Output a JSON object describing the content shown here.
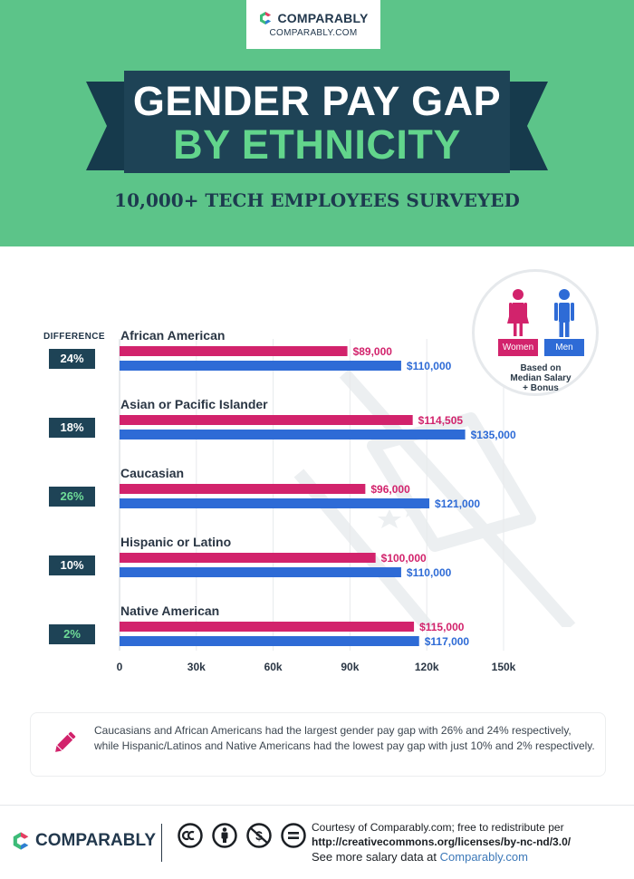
{
  "header": {
    "logo_name": "COMPARABLY",
    "logo_url": "COMPARABLY.COM",
    "title_line1": "GENDER PAY GAP",
    "title_line2": "BY ETHNICITY",
    "subtitle": "10,000+ TECH EMPLOYEES SURVEYED"
  },
  "colors": {
    "header_green": "#5cc489",
    "banner_navy": "#1e4356",
    "women": "#d2236c",
    "men": "#2e6bd6",
    "highlight_green": "#6fdc98"
  },
  "legend": {
    "women": "Women",
    "men": "Men",
    "note_line1": "Based on",
    "note_line2": "Median Salary",
    "note_line3": "+ Bonus",
    "icons": [
      "woman-figure-icon",
      "man-figure-icon"
    ]
  },
  "difference_header": "DIFFERENCE",
  "chart_data": {
    "type": "bar",
    "orientation": "horizontal",
    "categories": [
      "African American",
      "Asian or Pacific Islander",
      "Caucasian",
      "Hispanic or Latino",
      "Native American"
    ],
    "differences": [
      "24%",
      "18%",
      "26%",
      "10%",
      "2%"
    ],
    "highlighted_differences": [
      false,
      false,
      true,
      false,
      true
    ],
    "series": [
      {
        "name": "Women",
        "values": [
          89000,
          114505,
          96000,
          100000,
          115000
        ],
        "labels": [
          "$89,000",
          "$114,505",
          "$96,000",
          "$100,000",
          "$115,000"
        ]
      },
      {
        "name": "Men",
        "values": [
          110000,
          135000,
          121000,
          110000,
          117000
        ],
        "labels": [
          "$110,000",
          "$135,000",
          "$121,000",
          "$110,000",
          "$117,000"
        ]
      }
    ],
    "x_ticks": [
      0,
      30000,
      60000,
      90000,
      120000,
      150000
    ],
    "x_tick_labels": [
      "0",
      "30k",
      "60k",
      "90k",
      "120k",
      "150k"
    ],
    "xlim": [
      0,
      150000
    ],
    "grid": true
  },
  "callout": {
    "icon": "pencil-icon",
    "text": "Caucasians and African Americans had the largest gender pay gap with 26% and 24% respectively, while Hispanic/Latinos and Native Americans had the lowest pay gap with just 10% and 2% respectively."
  },
  "footer": {
    "logo_name": "COMPARABLY",
    "license_icons": [
      "cc-icon",
      "by-attribution-icon",
      "non-commercial-icon",
      "no-derivatives-icon"
    ],
    "credit_line1": "Courtesy of Comparably.com; free to redistribute per",
    "credit_url": "http://creativecommons.org/licenses/by-nc-nd/3.0/",
    "more_prefix": "See more salary data at ",
    "more_link": "Comparably.com"
  }
}
